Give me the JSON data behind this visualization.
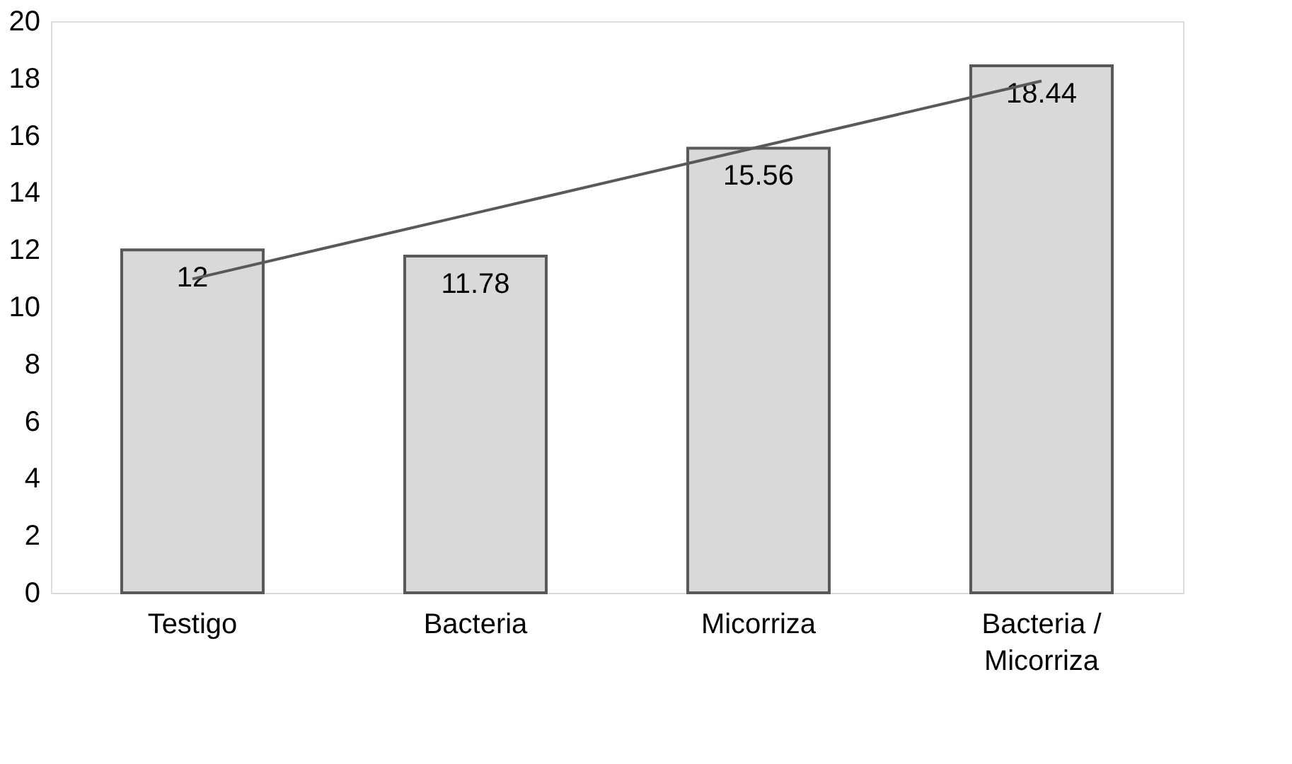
{
  "chart_data": {
    "type": "bar",
    "categories": [
      "Testigo",
      "Bacteria",
      "Micorriza",
      "Bacteria / Micorriza"
    ],
    "series": [
      {
        "color": "#d9d9d9",
        "values": [
          12,
          11.78,
          15.56,
          18.44
        ],
        "value_labels": [
          "12",
          "11.78",
          "15.56",
          "18.44"
        ]
      },
      {
        "type": "line",
        "color": "#595959",
        "values": [
          10.98,
          13.29,
          15.6,
          17.91
        ]
      }
    ],
    "ylim": [
      0,
      20
    ],
    "yticks": [
      0,
      2,
      4,
      6,
      8,
      10,
      12,
      14,
      16,
      18,
      20
    ],
    "grid": false,
    "marker": "none",
    "line_style": "solid"
  }
}
